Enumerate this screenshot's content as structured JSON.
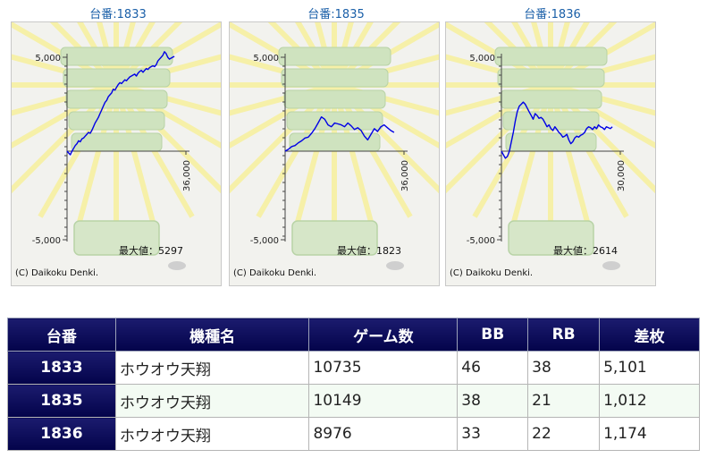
{
  "chart_data": [
    {
      "type": "line",
      "title": "台番:1833",
      "y_ticks": [
        "5,000",
        "-5,000"
      ],
      "x_end_label": "36,000",
      "x_max": 36000,
      "ylim": [
        -5000,
        5000
      ],
      "max_label": "最大値：5297",
      "credit": "(C) Daikoku Denki.",
      "color": "#0000e6",
      "x": [
        0,
        500,
        1000,
        1500,
        2000,
        2500,
        3000,
        3500,
        4000,
        4500,
        5000,
        5500,
        6000,
        6500,
        7000,
        7500,
        8000,
        8500,
        9000,
        9500,
        10000,
        10500,
        11000,
        11500,
        12000,
        12500,
        13000,
        13500,
        14000,
        14500,
        15000,
        15500,
        16000,
        16500,
        17000,
        17500,
        18000,
        18500,
        19000,
        19500,
        20000,
        20500,
        21000,
        21500,
        22000,
        22500,
        23000,
        23500,
        24000,
        24500,
        25000,
        25500,
        26000,
        26500,
        27000,
        27500,
        28000,
        28500,
        29000,
        29500,
        30000,
        30500,
        31000,
        31500,
        32000,
        32500
      ],
      "y": [
        0,
        -100,
        -200,
        0,
        150,
        300,
        400,
        550,
        500,
        650,
        700,
        800,
        900,
        1000,
        950,
        1100,
        1300,
        1500,
        1650,
        1800,
        2000,
        2200,
        2400,
        2600,
        2700,
        2900,
        3000,
        3100,
        3300,
        3250,
        3400,
        3550,
        3650,
        3600,
        3700,
        3800,
        3750,
        3850,
        3950,
        4000,
        4050,
        4100,
        4000,
        4150,
        4250,
        4300,
        4200,
        4300,
        4400,
        4350,
        4450,
        4500,
        4550,
        4500,
        4600,
        4800,
        4900,
        5000,
        5100,
        5297,
        5200,
        5000,
        4900,
        4950,
        5000,
        5050
      ]
    },
    {
      "type": "line",
      "title": "台番:1835",
      "y_ticks": [
        "5,000",
        "-5,000"
      ],
      "x_end_label": "36,000",
      "x_max": 36000,
      "ylim": [
        -5000,
        5000
      ],
      "max_label": "最大値：1823",
      "credit": "(C) Daikoku Denki.",
      "color": "#0000e6",
      "x": [
        0,
        1000,
        2000,
        3000,
        4000,
        5000,
        6000,
        7000,
        8000,
        9000,
        10000,
        11000,
        12000,
        13000,
        14000,
        15000,
        16000,
        17000,
        18000,
        19000,
        20000,
        21000,
        22000,
        23000,
        24000,
        25000,
        26000,
        27000,
        28000,
        29000,
        30000,
        31000,
        32000,
        33000
      ],
      "y": [
        0,
        100,
        250,
        300,
        450,
        550,
        700,
        750,
        950,
        1200,
        1500,
        1823,
        1700,
        1400,
        1300,
        1500,
        1450,
        1400,
        1300,
        1500,
        1350,
        1150,
        1250,
        1100,
        800,
        600,
        900,
        1200,
        1050,
        1300,
        1400,
        1250,
        1100,
        1000
      ]
    },
    {
      "type": "line",
      "title": "台番:1836",
      "y_ticks": [
        "5,000",
        "-5,000"
      ],
      "x_end_label": "30,000",
      "x_max": 30000,
      "ylim": [
        -5000,
        5000
      ],
      "max_label": "最大値：2614",
      "credit": "(C) Daikoku Denki.",
      "color": "#0000e6",
      "x": [
        0,
        500,
        1000,
        1500,
        2000,
        2500,
        3000,
        3500,
        4000,
        4500,
        5000,
        5500,
        6000,
        6500,
        7000,
        7500,
        8000,
        8500,
        9000,
        9500,
        10000,
        10500,
        11000,
        11500,
        12000,
        12500,
        13000,
        13500,
        14000,
        14500,
        15000,
        15500,
        16000,
        16500,
        17000,
        17500,
        18000,
        18500,
        19000,
        19500,
        20000,
        20500,
        21000,
        21500,
        22000,
        22500,
        23000,
        23500,
        24000,
        24500,
        25000,
        25500,
        26000,
        26500,
        27000,
        27500,
        28000
      ],
      "y": [
        0,
        -200,
        -400,
        -300,
        0,
        500,
        1000,
        1600,
        2100,
        2400,
        2500,
        2614,
        2500,
        2300,
        2100,
        1900,
        1700,
        2000,
        1900,
        1750,
        1800,
        1700,
        1500,
        1300,
        1400,
        1200,
        1100,
        1300,
        1150,
        1000,
        900,
        750,
        800,
        900,
        600,
        400,
        500,
        700,
        800,
        750,
        850,
        900,
        1000,
        1200,
        1300,
        1250,
        1150,
        1300,
        1200,
        1400,
        1300,
        1250,
        1150,
        1300,
        1250,
        1200,
        1300
      ]
    }
  ],
  "table": {
    "headers": [
      "台番",
      "機種名",
      "ゲーム数",
      "BB",
      "RB",
      "差枚"
    ],
    "rows": [
      [
        "1833",
        "ホウオウ天翔",
        "10735",
        "46",
        "38",
        "5,101"
      ],
      [
        "1835",
        "ホウオウ天翔",
        "10149",
        "38",
        "21",
        "1,012"
      ],
      [
        "1836",
        "ホウオウ天翔",
        "8976",
        "33",
        "22",
        "1,174"
      ]
    ]
  }
}
